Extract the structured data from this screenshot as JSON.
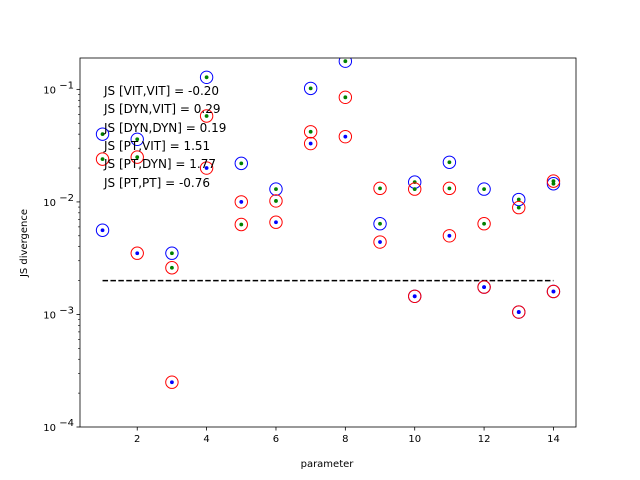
{
  "chart_data": {
    "type": "scatter",
    "title": "",
    "xlabel": "parameter",
    "ylabel": "JS divergence",
    "yscale": "log",
    "xlim": [
      0.35,
      14.65
    ],
    "ylim": [
      0.0001,
      0.19
    ],
    "x_ticks": [
      2,
      4,
      6,
      8,
      10,
      12,
      14
    ],
    "x_tick_labels": [
      "2",
      "4",
      "6",
      "8",
      "10",
      "12",
      "14"
    ],
    "y_ticks": [
      0.0001,
      0.001,
      0.01,
      0.1
    ],
    "y_tick_labels": [
      "10",
      "10",
      "10",
      "10"
    ],
    "y_tick_exponents": [
      "−4",
      "−3",
      "−2",
      "−1"
    ],
    "series": [
      {
        "name": "blue circles (blue dot)",
        "marker": "open-circle",
        "edge_color": "#0000ff",
        "dot_color": "#0000ff",
        "points": [
          {
            "x": 1,
            "y": 0.0056
          },
          {
            "x": 10,
            "y": 0.00145
          },
          {
            "x": 12,
            "y": 0.00175
          },
          {
            "x": 13,
            "y": 0.00105
          },
          {
            "x": 14,
            "y": 0.0016
          }
        ]
      },
      {
        "name": "green-dot blue circles",
        "marker": "open-circle",
        "edge_color": "#0000ff",
        "dot_color": "#008000",
        "points": [
          {
            "x": 1,
            "y": 0.04
          },
          {
            "x": 2,
            "y": 0.036
          },
          {
            "x": 3,
            "y": 0.0035
          },
          {
            "x": 4,
            "y": 0.128
          },
          {
            "x": 5,
            "y": 0.022
          },
          {
            "x": 6,
            "y": 0.013
          },
          {
            "x": 7,
            "y": 0.102
          },
          {
            "x": 8,
            "y": 0.178
          },
          {
            "x": 9,
            "y": 0.0064
          },
          {
            "x": 10,
            "y": 0.015
          },
          {
            "x": 11,
            "y": 0.0225
          },
          {
            "x": 12,
            "y": 0.013
          },
          {
            "x": 13,
            "y": 0.0105
          },
          {
            "x": 14,
            "y": 0.0145
          }
        ]
      },
      {
        "name": "red circles (green dot)",
        "marker": "open-circle",
        "edge_color": "#ff0000",
        "dot_color": "#008000",
        "points": [
          {
            "x": 1,
            "y": 0.024
          },
          {
            "x": 2,
            "y": 0.025
          },
          {
            "x": 3,
            "y": 0.0026
          },
          {
            "x": 4,
            "y": 0.058
          },
          {
            "x": 5,
            "y": 0.0063
          },
          {
            "x": 6,
            "y": 0.0102
          },
          {
            "x": 7,
            "y": 0.042
          },
          {
            "x": 8,
            "y": 0.085
          },
          {
            "x": 9,
            "y": 0.0132
          },
          {
            "x": 10,
            "y": 0.013
          },
          {
            "x": 11,
            "y": 0.0132
          },
          {
            "x": 12,
            "y": 0.0064
          },
          {
            "x": 13,
            "y": 0.0089
          },
          {
            "x": 14,
            "y": 0.0153
          }
        ]
      },
      {
        "name": "red circles (blue dot)",
        "marker": "open-circle",
        "edge_color": "#ff0000",
        "dot_color": "#0000ff",
        "points": [
          {
            "x": 2,
            "y": 0.0035
          },
          {
            "x": 3,
            "y": 0.00025
          },
          {
            "x": 4,
            "y": 0.02
          },
          {
            "x": 5,
            "y": 0.01
          },
          {
            "x": 6,
            "y": 0.0066
          },
          {
            "x": 7,
            "y": 0.033
          },
          {
            "x": 8,
            "y": 0.038
          },
          {
            "x": 9,
            "y": 0.0044
          },
          {
            "x": 10,
            "y": 0.00145
          },
          {
            "x": 11,
            "y": 0.005
          },
          {
            "x": 12,
            "y": 0.00175
          },
          {
            "x": 13,
            "y": 0.00105
          },
          {
            "x": 14,
            "y": 0.0016
          }
        ]
      }
    ],
    "reference_line": {
      "style": "dashed",
      "color": "#000000",
      "x": [
        1,
        14
      ],
      "y": 0.002
    },
    "annotations": [
      "JS [VIT,VIT] = -0.20",
      "JS [DYN,VIT] = 0.29",
      "JS [DYN,DYN] = 0.19",
      "JS [PT,VIT] = 1.51",
      "JS [PT,DYN] = 1.77",
      "JS [PT,PT] = -0.76"
    ]
  }
}
